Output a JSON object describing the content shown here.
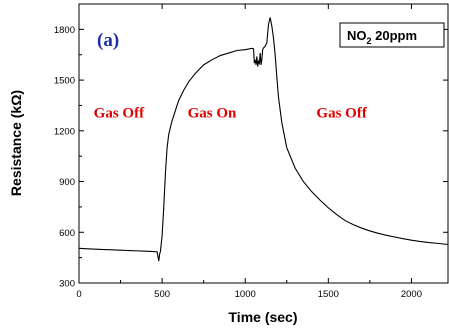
{
  "chart_data": {
    "type": "line",
    "title": "",
    "xlabel": "Time (sec)",
    "ylabel": "Resistance (kΩ)",
    "xlim": [
      0,
      2220
    ],
    "ylim": [
      300,
      1950
    ],
    "xticks": [
      0,
      500,
      1000,
      1500,
      2000
    ],
    "yticks": [
      300,
      600,
      900,
      1200,
      1500,
      1800
    ],
    "grid": false,
    "series": [
      {
        "color": "#000000",
        "x": [
          0,
          50,
          100,
          150,
          200,
          250,
          300,
          350,
          400,
          450,
          470,
          480,
          485,
          490,
          500,
          510,
          520,
          530,
          540,
          550,
          560,
          580,
          600,
          630,
          660,
          700,
          750,
          800,
          850,
          900,
          950,
          1000,
          1040,
          1050,
          1055,
          1060,
          1065,
          1070,
          1075,
          1080,
          1085,
          1090,
          1095,
          1100,
          1105,
          1110,
          1120,
          1130,
          1140,
          1150,
          1160,
          1170,
          1180,
          1190,
          1200,
          1220,
          1250,
          1300,
          1350,
          1400,
          1450,
          1500,
          1550,
          1600,
          1650,
          1700,
          1750,
          1800,
          1850,
          1900,
          1950,
          2000,
          2050,
          2100,
          2150,
          2200,
          2220
        ],
        "y": [
          505,
          502,
          500,
          498,
          496,
          494,
          492,
          490,
          488,
          486,
          484,
          430,
          470,
          488,
          580,
          750,
          950,
          1100,
          1180,
          1220,
          1260,
          1320,
          1380,
          1440,
          1490,
          1540,
          1590,
          1620,
          1645,
          1660,
          1675,
          1680,
          1688,
          1685,
          1600,
          1620,
          1590,
          1640,
          1580,
          1610,
          1600,
          1660,
          1590,
          1620,
          1680,
          1690,
          1700,
          1720,
          1830,
          1870,
          1820,
          1750,
          1650,
          1520,
          1400,
          1250,
          1100,
          980,
          900,
          840,
          790,
          745,
          705,
          670,
          645,
          625,
          608,
          594,
          582,
          572,
          562,
          553,
          546,
          540,
          535,
          530,
          528
        ]
      }
    ],
    "annotations": {
      "panel_label": "(a)",
      "legend_box": {
        "prefix": "NO",
        "subscript": "2",
        "suffix": " 20ppm"
      },
      "regions": [
        {
          "text": "Gas Off",
          "x": 240,
          "y": 1280
        },
        {
          "text": "Gas On",
          "x": 800,
          "y": 1280
        },
        {
          "text": "Gas Off",
          "x": 1580,
          "y": 1280
        }
      ],
      "panel_label_color": "#1f2f9f",
      "region_color": "#e00000"
    }
  }
}
